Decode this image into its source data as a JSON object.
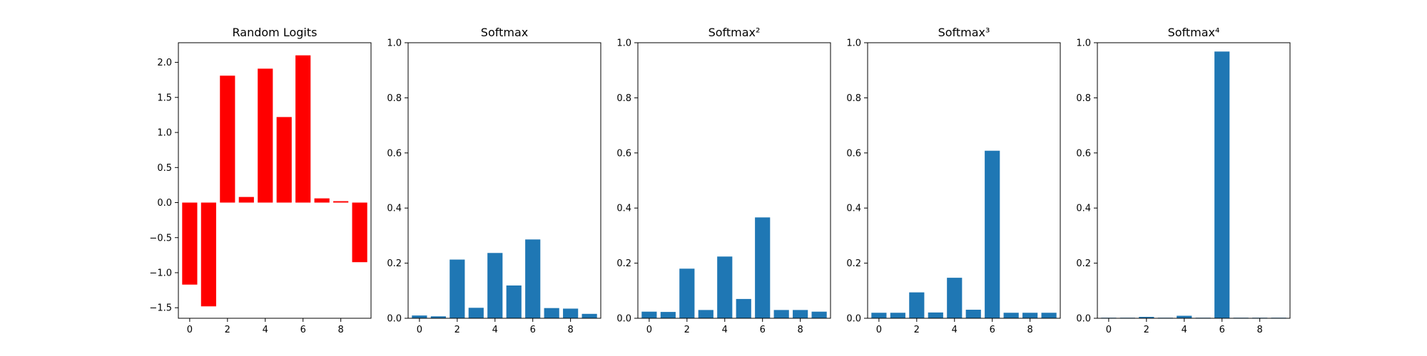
{
  "chart_data": [
    {
      "type": "bar",
      "title": "Random Logits",
      "x": [
        0,
        1,
        2,
        3,
        4,
        5,
        6,
        7,
        8,
        9
      ],
      "values": [
        -1.17,
        -1.48,
        1.81,
        0.08,
        1.91,
        1.22,
        2.1,
        0.06,
        0.02,
        -0.85
      ],
      "ylim": [
        -1.65,
        2.28
      ],
      "xlim": [
        -0.6,
        9.6
      ],
      "xticks": [
        0,
        2,
        4,
        6,
        8
      ],
      "yticks": [
        -1.5,
        -1.0,
        -0.5,
        0.0,
        0.5,
        1.0,
        1.5,
        2.0
      ],
      "ytick_labels": [
        "−1.5",
        "−1.0",
        "−0.5",
        "0.0",
        "0.5",
        "1.0",
        "1.5",
        "2.0"
      ],
      "color": "#ff0000",
      "grid": false
    },
    {
      "type": "bar",
      "title": "Softmax",
      "x": [
        0,
        1,
        2,
        3,
        4,
        5,
        6,
        7,
        8,
        9
      ],
      "values": [
        0.01,
        0.007,
        0.213,
        0.038,
        0.237,
        0.119,
        0.286,
        0.037,
        0.035,
        0.016
      ],
      "ylim": [
        0,
        1
      ],
      "xlim": [
        -0.6,
        9.6
      ],
      "xticks": [
        0,
        2,
        4,
        6,
        8
      ],
      "yticks": [
        0.0,
        0.2,
        0.4,
        0.6,
        0.8,
        1.0
      ],
      "ytick_labels": [
        "0.0",
        "0.2",
        "0.4",
        "0.6",
        "0.8",
        "1.0"
      ],
      "color": "#1f77b4",
      "grid": false
    },
    {
      "type": "bar",
      "title": "Softmax²",
      "x": [
        0,
        1,
        2,
        3,
        4,
        5,
        6,
        7,
        8,
        9
      ],
      "values": [
        0.024,
        0.023,
        0.18,
        0.03,
        0.224,
        0.07,
        0.366,
        0.03,
        0.03,
        0.024
      ],
      "ylim": [
        0,
        1
      ],
      "xlim": [
        -0.6,
        9.6
      ],
      "xticks": [
        0,
        2,
        4,
        6,
        8
      ],
      "yticks": [
        0.0,
        0.2,
        0.4,
        0.6,
        0.8,
        1.0
      ],
      "ytick_labels": [
        "0.0",
        "0.2",
        "0.4",
        "0.6",
        "0.8",
        "1.0"
      ],
      "color": "#1f77b4",
      "grid": false
    },
    {
      "type": "bar",
      "title": "Softmax³",
      "x": [
        0,
        1,
        2,
        3,
        4,
        5,
        6,
        7,
        8,
        9
      ],
      "values": [
        0.02,
        0.02,
        0.094,
        0.021,
        0.147,
        0.031,
        0.608,
        0.02,
        0.02,
        0.02
      ],
      "ylim": [
        0,
        1
      ],
      "xlim": [
        -0.6,
        9.6
      ],
      "xticks": [
        0,
        2,
        4,
        6,
        8
      ],
      "yticks": [
        0.0,
        0.2,
        0.4,
        0.6,
        0.8,
        1.0
      ],
      "ytick_labels": [
        "0.0",
        "0.2",
        "0.4",
        "0.6",
        "0.8",
        "1.0"
      ],
      "color": "#1f77b4",
      "grid": false
    },
    {
      "type": "bar",
      "title": "Softmax⁴",
      "x": [
        0,
        1,
        2,
        3,
        4,
        5,
        6,
        7,
        8,
        9
      ],
      "values": [
        0.002,
        0.002,
        0.005,
        0.002,
        0.009,
        0.002,
        0.968,
        0.002,
        0.002,
        0.002
      ],
      "ylim": [
        0,
        1
      ],
      "xlim": [
        -0.6,
        9.6
      ],
      "xticks": [
        0,
        2,
        4,
        6,
        8
      ],
      "yticks": [
        0.0,
        0.2,
        0.4,
        0.6,
        0.8,
        1.0
      ],
      "ytick_labels": [
        "0.0",
        "0.2",
        "0.4",
        "0.6",
        "0.8",
        "1.0"
      ],
      "color": "#1f77b4",
      "grid": false
    }
  ]
}
